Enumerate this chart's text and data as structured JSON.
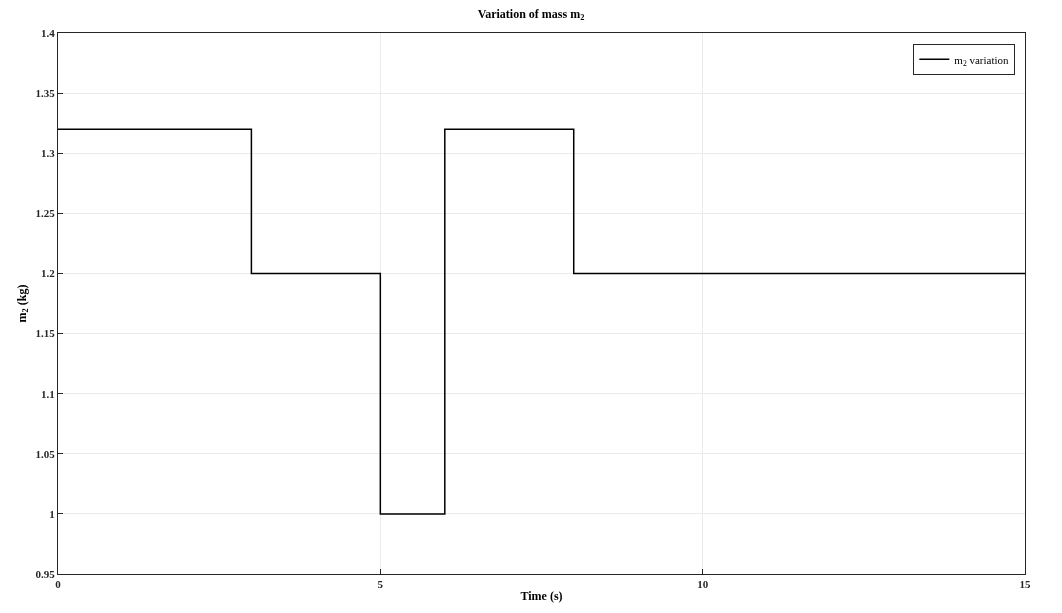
{
  "chart_data": {
    "type": "step",
    "title": "Variation of mass m$_{2}$",
    "xlabel": "Time (s)",
    "ylabel": "m$_{2}$ (kg)",
    "x": [
      0,
      3,
      5,
      6,
      8,
      15
    ],
    "series": [
      {
        "name": "m$_{2}$ variation",
        "color": "#000000",
        "values": [
          1.32,
          1.2,
          1.0,
          1.32,
          1.2,
          1.2
        ]
      }
    ],
    "xlim": [
      0,
      15
    ],
    "xticks": [
      0,
      5,
      10,
      15
    ],
    "ylim": [
      0.95,
      1.4
    ],
    "yticks": [
      0.95,
      1,
      1.05,
      1.1,
      1.15,
      1.2,
      1.25,
      1.3,
      1.35,
      1.4
    ],
    "grid": true,
    "legend": "top right",
    "line_style": "solid",
    "marker": "none"
  }
}
